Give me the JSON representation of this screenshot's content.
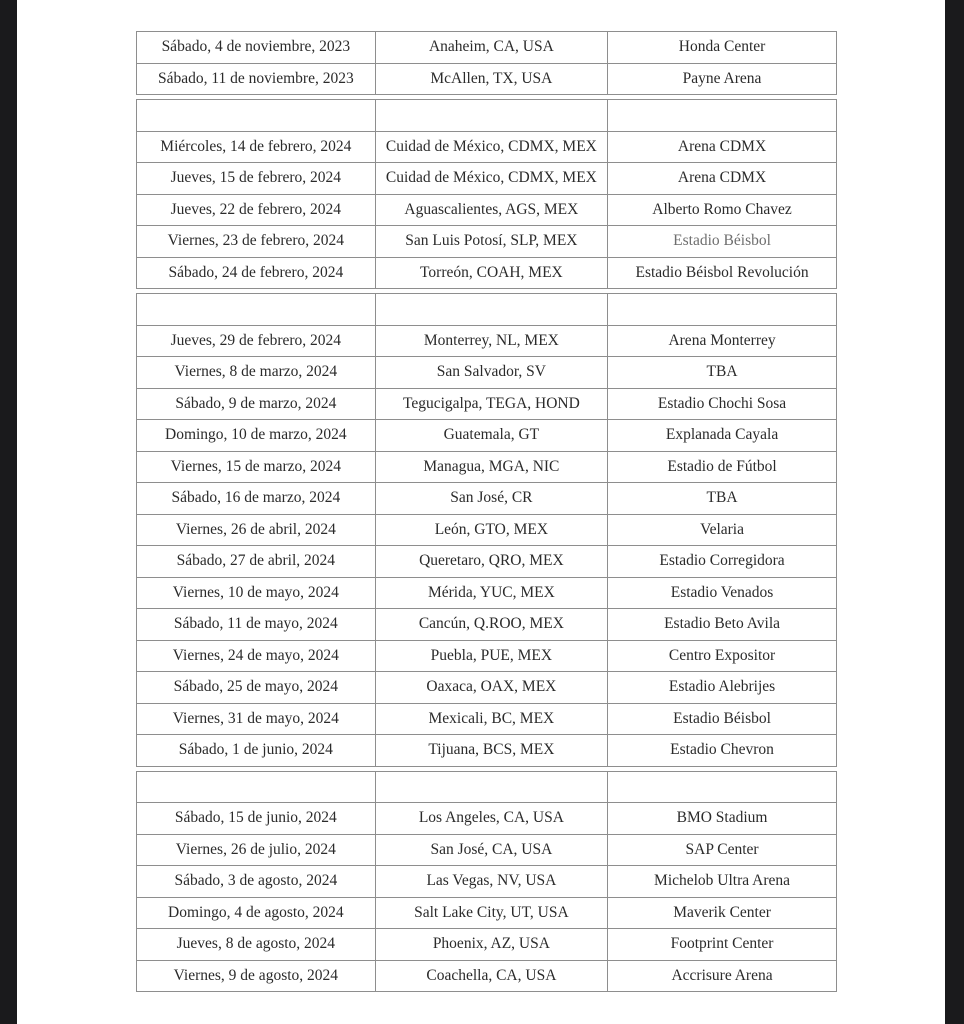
{
  "colors": {
    "page_background": "#ffffff",
    "side_strip": "#1a1a1c",
    "table_border": "#8e8e8e",
    "text": "#2b2b2b",
    "muted_text": "#6e6e6e"
  },
  "table": {
    "columns": [
      "date",
      "city",
      "venue"
    ],
    "sections": [
      {
        "rows": [
          {
            "date": "Sábado, 4 de noviembre, 2023",
            "city": "Anaheim, CA, USA",
            "venue": "Honda Center"
          },
          {
            "date": "Sábado, 11 de noviembre, 2023",
            "city": "McAllen, TX, USA",
            "venue": "Payne Arena"
          }
        ]
      },
      {
        "rows": [
          {
            "separator": true,
            "date": "",
            "city": "",
            "venue": ""
          },
          {
            "date": "Miércoles, 14 de febrero, 2024",
            "city": "Cuidad de México, CDMX, MEX",
            "venue": "Arena CDMX"
          },
          {
            "date": "Jueves, 15 de febrero, 2024",
            "city": "Cuidad de México, CDMX, MEX",
            "venue": "Arena CDMX"
          },
          {
            "date": "Jueves, 22 de febrero, 2024",
            "city": "Aguascalientes, AGS, MEX",
            "venue": "Alberto Romo Chavez"
          },
          {
            "date": "Viernes, 23 de febrero, 2024",
            "city": "San Luis Potosí, SLP, MEX",
            "venue": "Estadio Béisbol",
            "venue_muted": true
          },
          {
            "date": "Sábado, 24 de febrero, 2024",
            "city": "Torreón, COAH, MEX",
            "venue": "Estadio Béisbol Revolución"
          }
        ]
      },
      {
        "rows": [
          {
            "separator": true,
            "date": "",
            "city": "",
            "venue": ""
          },
          {
            "date": "Jueves, 29 de febrero, 2024",
            "city": "Monterrey, NL, MEX",
            "venue": "Arena Monterrey"
          },
          {
            "date": "Viernes, 8 de marzo, 2024",
            "city": "San Salvador, SV",
            "venue": "TBA"
          },
          {
            "date": "Sábado, 9 de marzo, 2024",
            "city": "Tegucigalpa, TEGA, HOND",
            "venue": "Estadio Chochi Sosa"
          },
          {
            "date": "Domingo, 10 de marzo, 2024",
            "city": "Guatemala, GT",
            "venue": "Explanada Cayala"
          },
          {
            "date": "Viernes, 15 de marzo, 2024",
            "city": "Managua, MGA, NIC",
            "venue": "Estadio de Fútbol"
          },
          {
            "date": "Sábado, 16 de marzo, 2024",
            "city": "San José, CR",
            "venue": "TBA"
          },
          {
            "date": "Viernes, 26 de abril, 2024",
            "city": "León, GTO, MEX",
            "venue": "Velaria"
          },
          {
            "date": "Sábado, 27 de abril, 2024",
            "city": "Queretaro, QRO, MEX",
            "venue": "Estadio Corregidora"
          },
          {
            "date": "Viernes, 10 de mayo, 2024",
            "city": "Mérida, YUC, MEX",
            "venue": "Estadio Venados"
          },
          {
            "date": "Sábado, 11 de mayo, 2024",
            "city": "Cancún, Q.ROO, MEX",
            "venue": "Estadio Beto Avila"
          },
          {
            "date": "Viernes, 24 de mayo, 2024",
            "city": "Puebla, PUE, MEX",
            "venue": "Centro Expositor"
          },
          {
            "date": "Sábado, 25 de mayo, 2024",
            "city": "Oaxaca, OAX, MEX",
            "venue": "Estadio Alebrijes"
          },
          {
            "date": "Viernes, 31 de mayo, 2024",
            "city": "Mexicali, BC, MEX",
            "venue": "Estadio Béisbol"
          },
          {
            "date": "Sábado, 1 de junio, 2024",
            "city": "Tijuana, BCS, MEX",
            "venue": "Estadio Chevron"
          }
        ]
      },
      {
        "rows": [
          {
            "separator": true,
            "date": "",
            "city": "",
            "venue": ""
          },
          {
            "date": "Sábado, 15 de junio, 2024",
            "city": "Los Angeles, CA, USA",
            "venue": "BMO Stadium"
          },
          {
            "date": "Viernes, 26 de julio, 2024",
            "city": "San José, CA, USA",
            "venue": "SAP Center"
          },
          {
            "date": "Sábado, 3 de agosto, 2024",
            "city": "Las Vegas, NV, USA",
            "venue": "Michelob Ultra Arena"
          },
          {
            "date": "Domingo, 4 de agosto, 2024",
            "city": "Salt Lake City, UT, USA",
            "venue": "Maverik Center"
          },
          {
            "date": "Jueves, 8 de agosto, 2024",
            "city": "Phoenix, AZ, USA",
            "venue": "Footprint Center"
          },
          {
            "date": "Viernes, 9 de agosto, 2024",
            "city": "Coachella, CA, USA",
            "venue": "Accrisure Arena"
          }
        ]
      }
    ]
  }
}
